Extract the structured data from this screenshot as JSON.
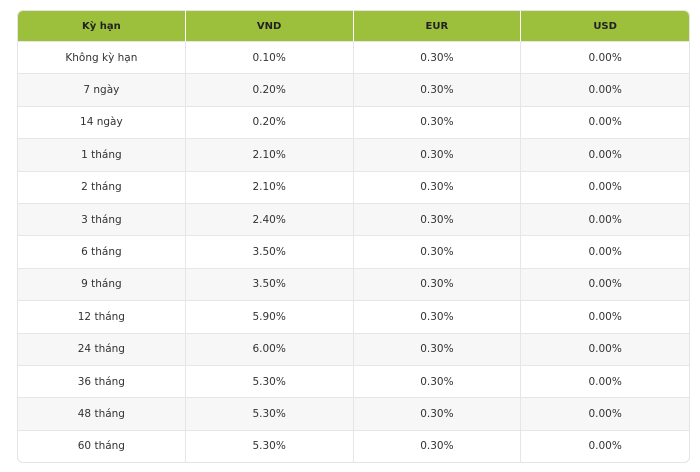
{
  "table": {
    "header": [
      "Kỳ hạn",
      "VND",
      "EUR",
      "USD"
    ],
    "rows": [
      [
        "Không kỳ hạn",
        "0.10%",
        "0.30%",
        "0.00%"
      ],
      [
        "7 ngày",
        "0.20%",
        "0.30%",
        "0.00%"
      ],
      [
        "14 ngày",
        "0.20%",
        "0.30%",
        "0.00%"
      ],
      [
        "1 tháng",
        "2.10%",
        "0.30%",
        "0.00%"
      ],
      [
        "2 tháng",
        "2.10%",
        "0.30%",
        "0.00%"
      ],
      [
        "3 tháng",
        "2.40%",
        "0.30%",
        "0.00%"
      ],
      [
        "6 tháng",
        "3.50%",
        "0.30%",
        "0.00%"
      ],
      [
        "9 tháng",
        "3.50%",
        "0.30%",
        "0.00%"
      ],
      [
        "12 tháng",
        "5.90%",
        "0.30%",
        "0.00%"
      ],
      [
        "24 tháng",
        "6.00%",
        "0.30%",
        "0.00%"
      ],
      [
        "36 tháng",
        "5.30%",
        "0.30%",
        "0.00%"
      ],
      [
        "48 tháng",
        "5.30%",
        "0.30%",
        "0.00%"
      ],
      [
        "60 tháng",
        "5.30%",
        "0.30%",
        "0.00%"
      ]
    ]
  }
}
